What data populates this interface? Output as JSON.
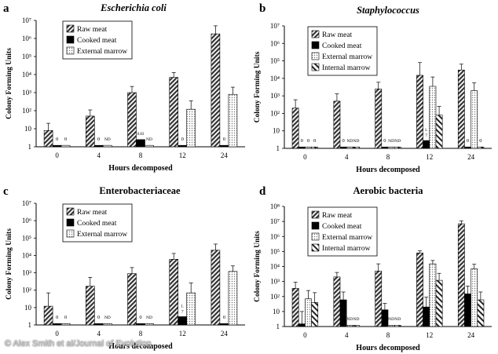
{
  "figure": {
    "watermark": "© Alex Smith et al/Journal of Evolution"
  },
  "chart_data": [
    {
      "panel": "a",
      "type": "bar",
      "title": "Escherichia coli",
      "title_style": "italic",
      "xlabel": "Hours decomposed",
      "ylabel": "Colony Forming Units",
      "yscale": "log",
      "ylim": [
        1,
        10000000
      ],
      "yticks": [
        "1",
        "10",
        "10²",
        "10³",
        "10⁴",
        "10⁵",
        "10⁶",
        "10⁷"
      ],
      "categories": [
        "0",
        "4",
        "8",
        "12",
        "24"
      ],
      "legend_position": "top-left",
      "series": [
        {
          "name": "Raw meat",
          "pattern": "diag",
          "values": [
            8,
            50,
            1000,
            7000,
            1800000
          ],
          "error": [
            20,
            110,
            2200,
            13000,
            5000000
          ],
          "labels": [
            null,
            null,
            null,
            null,
            null
          ]
        },
        {
          "name": "Cooked meat",
          "pattern": "solid",
          "values": [
            1.2,
            1.2,
            2.5,
            1.2,
            1.2
          ],
          "error": [
            null,
            null,
            null,
            null,
            null
          ],
          "labels": [
            "0",
            "0",
            "0.83",
            "0",
            "0"
          ]
        },
        {
          "name": "External marrow",
          "pattern": "dots",
          "values": [
            1.2,
            1.2,
            1.2,
            120,
            800
          ],
          "error": [
            null,
            null,
            null,
            350,
            2000
          ],
          "labels": [
            "0",
            "ND",
            "ND",
            null,
            null
          ]
        }
      ]
    },
    {
      "panel": "b",
      "type": "bar",
      "title": "Staphylococcus",
      "title_style": "italic",
      "xlabel": "Hours decomposed",
      "ylabel": "Colony Forming Units",
      "yscale": "log",
      "ylim": [
        1,
        10000000
      ],
      "yticks": [
        "1",
        "10",
        "10²",
        "10³",
        "10⁴",
        "10⁵",
        "10⁶",
        "10⁷"
      ],
      "categories": [
        "0",
        "4",
        "8",
        "12",
        "24"
      ],
      "legend_position": "top-left",
      "series": [
        {
          "name": "Raw meat",
          "pattern": "diag",
          "values": [
            200,
            500,
            2500,
            15000,
            30000
          ],
          "error": [
            600,
            1300,
            6000,
            80000,
            65000
          ],
          "labels": [
            null,
            null,
            null,
            null,
            null
          ]
        },
        {
          "name": "Cooked meat",
          "pattern": "solid",
          "values": [
            1.2,
            1.2,
            1.2,
            2.8,
            1.2
          ],
          "error": [
            null,
            null,
            null,
            null,
            null
          ],
          "labels": [
            "0",
            "0",
            "0",
            "1.7",
            "0"
          ]
        },
        {
          "name": "External marrow",
          "pattern": "dots",
          "values": [
            1.2,
            1.2,
            1.2,
            3500,
            2000
          ],
          "error": [
            null,
            null,
            null,
            12000,
            5500
          ],
          "labels": [
            "0",
            "ND",
            "ND",
            null,
            null
          ]
        },
        {
          "name": "Internal marrow",
          "pattern": "diag-rev",
          "values": [
            1.2,
            1.2,
            1.2,
            80,
            1.2
          ],
          "error": [
            null,
            null,
            null,
            250,
            null
          ],
          "labels": [
            "0",
            "ND",
            "ND",
            null,
            "0"
          ]
        }
      ]
    },
    {
      "panel": "c",
      "type": "bar",
      "title": "Enterobacteriaceae",
      "title_style": "bold",
      "xlabel": "Hours decomposed",
      "ylabel": "Colony Forming Units",
      "yscale": "log",
      "ylim": [
        1,
        10000000
      ],
      "yticks": [
        "1",
        "10",
        "10²",
        "10³",
        "10⁴",
        "10⁵",
        "10⁶",
        "10⁷"
      ],
      "categories": [
        "0",
        "4",
        "8",
        "12",
        "24"
      ],
      "legend_position": "top-left",
      "series": [
        {
          "name": "Raw meat",
          "pattern": "diag",
          "values": [
            12,
            170,
            900,
            6000,
            20000
          ],
          "error": [
            70,
            550,
            2000,
            13000,
            45000
          ],
          "labels": [
            null,
            null,
            null,
            null,
            null
          ]
        },
        {
          "name": "Cooked meat",
          "pattern": "solid",
          "values": [
            1.2,
            1.2,
            1.2,
            3,
            1.2
          ],
          "error": [
            null,
            null,
            null,
            null,
            null
          ],
          "labels": [
            "0",
            "0",
            "0",
            "1.7",
            "0"
          ]
        },
        {
          "name": "External marrow",
          "pattern": "dots",
          "values": [
            1.2,
            1.2,
            1.2,
            70,
            1200
          ],
          "error": [
            null,
            null,
            null,
            260,
            2500
          ],
          "labels": [
            "0",
            "ND",
            "ND",
            null,
            null
          ]
        }
      ]
    },
    {
      "panel": "d",
      "type": "bar",
      "title": "Aerobic bacteria",
      "title_style": "bold",
      "xlabel": "Hours decomposed",
      "ylabel": "Colony Forming Units",
      "yscale": "log",
      "ylim": [
        1,
        100000000
      ],
      "yticks": [
        "1",
        "10",
        "10²",
        "10³",
        "10⁴",
        "10⁵",
        "10⁶",
        "10⁷",
        "10⁸"
      ],
      "categories": [
        "0",
        "4",
        "8",
        "12",
        "24"
      ],
      "legend_position": "top-left",
      "series": [
        {
          "name": "Raw meat",
          "pattern": "diag",
          "values": [
            350,
            2000,
            5000,
            80000,
            7000000
          ],
          "error": [
            900,
            4000,
            15000,
            110000,
            11000000
          ],
          "labels": [
            null,
            null,
            null,
            null,
            null
          ]
        },
        {
          "name": "Cooked meat",
          "pattern": "solid",
          "values": [
            1.5,
            60,
            13,
            20,
            150
          ],
          "error": [
            10,
            200,
            35,
            90,
            500
          ],
          "labels": [
            null,
            null,
            null,
            null,
            null
          ]
        },
        {
          "name": "External marrow",
          "pattern": "dots",
          "values": [
            70,
            1.2,
            1.2,
            15000,
            7000
          ],
          "error": [
            250,
            null,
            null,
            25000,
            14000
          ],
          "labels": [
            null,
            "ND",
            "ND",
            null,
            null
          ]
        },
        {
          "name": "Internal marrow",
          "pattern": "diag-rev",
          "values": [
            40,
            1.2,
            1.2,
            1200,
            60
          ],
          "error": [
            180,
            null,
            null,
            3500,
            200
          ],
          "labels": [
            null,
            "ND",
            "ND",
            null,
            null
          ]
        }
      ]
    }
  ],
  "panel_labels": [
    "a",
    "b",
    "c",
    "d"
  ]
}
